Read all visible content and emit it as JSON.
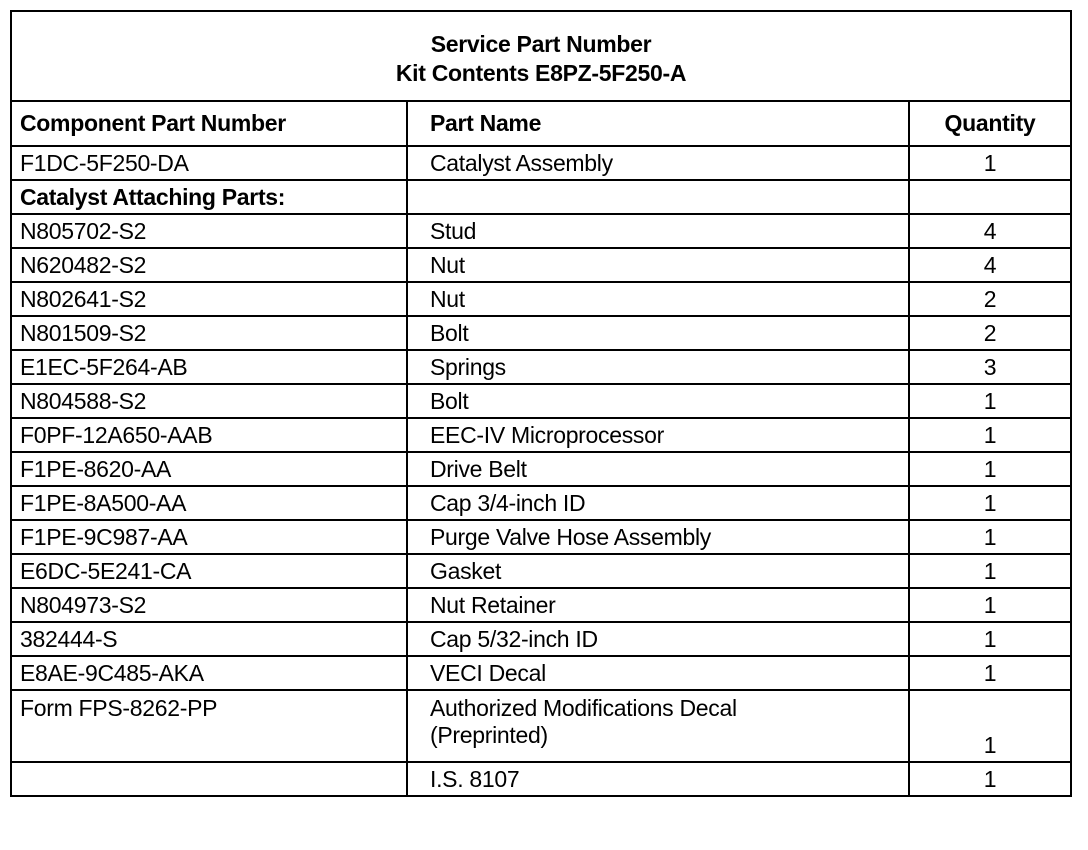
{
  "title": {
    "line1": "Service Part Number",
    "line2": "Kit Contents E8PZ-5F250-A"
  },
  "columns": {
    "part_number": "Component Part Number",
    "part_name": "Part Name",
    "quantity": "Quantity"
  },
  "rows": [
    {
      "part_number": "F1DC-5F250-DA",
      "part_name": "Catalyst Assembly",
      "quantity": "1"
    },
    {
      "part_number": "Catalyst Attaching Parts:",
      "part_name": "",
      "quantity": "",
      "section": true
    },
    {
      "part_number": "N805702-S2",
      "part_name": "Stud",
      "quantity": "4"
    },
    {
      "part_number": "N620482-S2",
      "part_name": "Nut",
      "quantity": "4"
    },
    {
      "part_number": "N802641-S2",
      "part_name": "Nut",
      "quantity": "2"
    },
    {
      "part_number": "N801509-S2",
      "part_name": "Bolt",
      "quantity": "2"
    },
    {
      "part_number": "E1EC-5F264-AB",
      "part_name": "Springs",
      "quantity": "3"
    },
    {
      "part_number": "N804588-S2",
      "part_name": "Bolt",
      "quantity": "1"
    },
    {
      "part_number": "F0PF-12A650-AAB",
      "part_name": "EEC-IV Microprocessor",
      "quantity": "1"
    },
    {
      "part_number": "F1PE-8620-AA",
      "part_name": "Drive Belt",
      "quantity": "1"
    },
    {
      "part_number": "F1PE-8A500-AA",
      "part_name": "Cap 3/4-inch ID",
      "quantity": "1"
    },
    {
      "part_number": "F1PE-9C987-AA",
      "part_name": "Purge Valve Hose Assembly",
      "quantity": "1"
    },
    {
      "part_number": "E6DC-5E241-CA",
      "part_name": "Gasket",
      "quantity": "1"
    },
    {
      "part_number": "N804973-S2",
      "part_name": "Nut Retainer",
      "quantity": "1"
    },
    {
      "part_number": "382444-S",
      "part_name": "Cap 5/32-inch ID",
      "quantity": "1"
    },
    {
      "part_number": "E8AE-9C485-AKA",
      "part_name": "VECI Decal",
      "quantity": "1"
    },
    {
      "part_number": "Form FPS-8262-PP",
      "part_name": "Authorized Modifications Decal",
      "part_name_line2": "(Preprinted)",
      "quantity": "1"
    },
    {
      "part_number": "",
      "part_name": "I.S. 8107",
      "quantity": "1"
    }
  ]
}
